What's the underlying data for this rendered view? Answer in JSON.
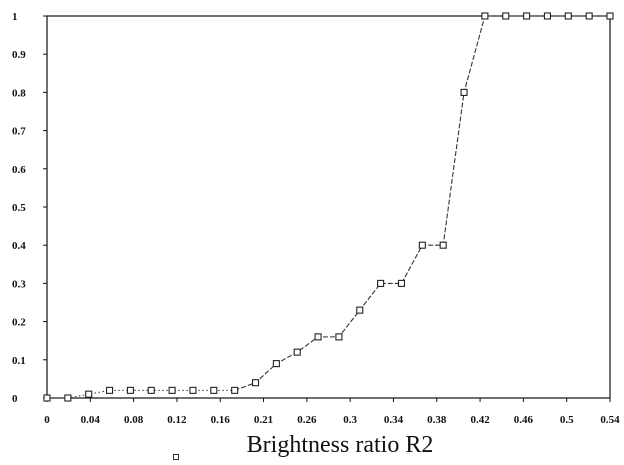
{
  "chart_data": {
    "type": "line",
    "xlabel": "Brightness ratio R2",
    "ylabel": "",
    "title": "",
    "xlim": [
      0,
      0.54
    ],
    "ylim": [
      0,
      1
    ],
    "x_tick_labels": [
      "0",
      "0.04",
      "0.08",
      "0.12",
      "0.16",
      "0.21",
      "0.26",
      "0.3",
      "0.34",
      "0.38",
      "0.42",
      "0.46",
      "0.5",
      "0.54"
    ],
    "y_ticks": [
      "0",
      "0.1",
      "0.2",
      "0.3",
      "0.4",
      "0.5",
      "0.6",
      "0.7",
      "0.8",
      "0.9",
      "1"
    ],
    "grid": false,
    "series": [
      {
        "x": [
          0,
          0.02,
          0.04,
          0.06,
          0.08,
          0.1,
          0.12,
          0.14,
          0.16,
          0.18,
          0.2,
          0.22,
          0.24,
          0.26,
          0.28,
          0.3,
          0.32,
          0.34,
          0.36,
          0.38,
          0.4,
          0.42,
          0.44,
          0.46,
          0.48,
          0.5,
          0.52,
          0.54
        ],
        "values": [
          0,
          0,
          0.01,
          0.02,
          0.02,
          0.02,
          0.02,
          0.02,
          0.02,
          0.02,
          0.04,
          0.09,
          0.12,
          0.16,
          0.16,
          0.23,
          0.3,
          0.3,
          0.4,
          0.4,
          0.8,
          1,
          1,
          1,
          1,
          1,
          1,
          1
        ]
      }
    ],
    "colors": {
      "line": "#333333",
      "marker": "#222222",
      "axis": "#111111"
    }
  }
}
